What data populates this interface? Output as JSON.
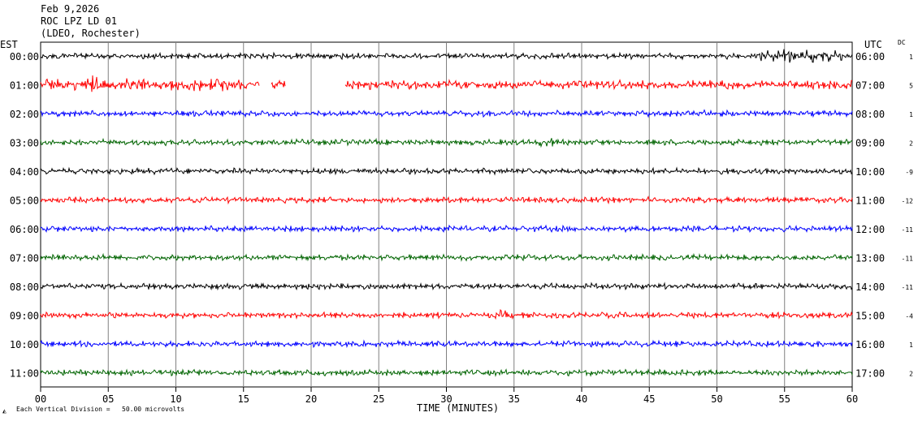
{
  "header": {
    "date": "Feb 9,2026",
    "station": "ROC LPZ LD 01",
    "network": "(LDEO, Rochester)"
  },
  "left_zone": "EST",
  "right_zone": "UTC",
  "dc_label": "DC",
  "footer": {
    "scale_note": "Each Vertical Division =   50.00 microvolts"
  },
  "chart_data": {
    "type": "line",
    "title": "",
    "xlabel": "TIME (MINUTES)",
    "ylabel": "",
    "xlim": [
      0,
      60
    ],
    "x_ticks": [
      "00",
      "05",
      "10",
      "15",
      "20",
      "25",
      "30",
      "35",
      "40",
      "45",
      "50",
      "55",
      "60"
    ],
    "x_gridlines_every_min": 5,
    "colors_cycle": [
      "#000000",
      "#ff0000",
      "#0000ff",
      "#006400"
    ],
    "rows": [
      {
        "est": "00:00",
        "utc": "06:00",
        "dc": "1",
        "color": "#000000",
        "amplitude": 4,
        "events": [
          {
            "start": 52.5,
            "end": 60,
            "amp": 10
          }
        ]
      },
      {
        "est": "01:00",
        "utc": "07:00",
        "dc": "5",
        "color": "#ff0000",
        "amplitude": 6,
        "gaps": [
          [
            16.2,
            17.0
          ],
          [
            18.1,
            22.5
          ]
        ],
        "events": [
          {
            "start": 0,
            "end": 3.0,
            "amp": 10
          },
          {
            "start": 3.0,
            "end": 5.0,
            "amp": 14
          },
          {
            "start": 6.3,
            "end": 7.8,
            "amp": 16
          },
          {
            "start": 8.0,
            "end": 16.2,
            "amp": 9
          }
        ]
      },
      {
        "est": "02:00",
        "utc": "08:00",
        "dc": "1",
        "color": "#0000ff",
        "amplitude": 4,
        "events": [
          {
            "start": 48.5,
            "end": 49.5,
            "amp": 7
          }
        ]
      },
      {
        "est": "03:00",
        "utc": "09:00",
        "dc": "2",
        "color": "#006400",
        "amplitude": 4,
        "events": [
          {
            "start": 36.5,
            "end": 38.5,
            "amp": 7
          }
        ]
      },
      {
        "est": "04:00",
        "utc": "10:00",
        "dc": "-9",
        "color": "#000000",
        "amplitude": 4
      },
      {
        "est": "05:00",
        "utc": "11:00",
        "dc": "-12",
        "color": "#ff0000",
        "amplitude": 4
      },
      {
        "est": "06:00",
        "utc": "12:00",
        "dc": "-11",
        "color": "#0000ff",
        "amplitude": 4
      },
      {
        "est": "07:00",
        "utc": "13:00",
        "dc": "-11",
        "color": "#006400",
        "amplitude": 4
      },
      {
        "est": "08:00",
        "utc": "14:00",
        "dc": "-11",
        "color": "#000000",
        "amplitude": 4
      },
      {
        "est": "09:00",
        "utc": "15:00",
        "dc": "-4",
        "color": "#ff0000",
        "amplitude": 4,
        "events": [
          {
            "start": 33.5,
            "end": 35.0,
            "amp": 7
          }
        ]
      },
      {
        "est": "10:00",
        "utc": "16:00",
        "dc": "1",
        "color": "#0000ff",
        "amplitude": 4
      },
      {
        "est": "11:00",
        "utc": "17:00",
        "dc": "2",
        "color": "#006400",
        "amplitude": 4
      }
    ]
  }
}
